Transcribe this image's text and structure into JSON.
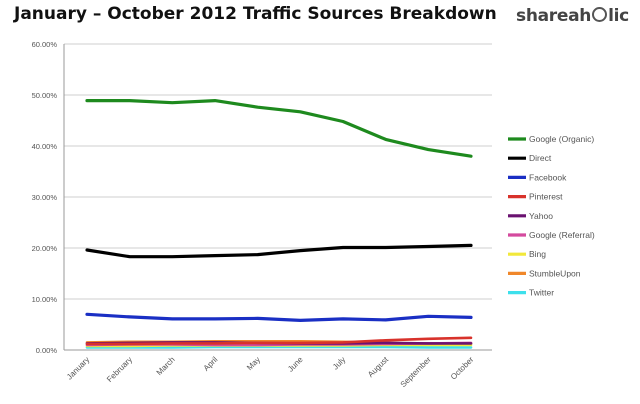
{
  "title": "January – October 2012 Traffic Sources Breakdown",
  "brand": {
    "text_left": "shareah",
    "text_right": "lic"
  },
  "chart_data": {
    "type": "line",
    "title": "January – October 2012 Traffic Sources Breakdown",
    "xlabel": "",
    "ylabel": "",
    "categories": [
      "January",
      "February",
      "March",
      "April",
      "May",
      "June",
      "July",
      "August",
      "September",
      "October"
    ],
    "ylim": [
      0,
      60
    ],
    "yticks": [
      "0.00%",
      "10.00%",
      "20.00%",
      "30.00%",
      "40.00%",
      "50.00%",
      "60.00%"
    ],
    "grid": true,
    "legend_position": "right",
    "series": [
      {
        "name": "Google (Organic)",
        "color": "#1e8a1e",
        "values": [
          48.9,
          48.9,
          48.5,
          48.9,
          47.6,
          46.7,
          44.8,
          41.3,
          39.3,
          38.0
        ]
      },
      {
        "name": "Direct",
        "color": "#000000",
        "values": [
          19.6,
          18.3,
          18.3,
          18.5,
          18.7,
          19.5,
          20.1,
          20.1,
          20.3,
          20.5
        ]
      },
      {
        "name": "Facebook",
        "color": "#1a2fc4",
        "values": [
          7.0,
          6.5,
          6.1,
          6.1,
          6.2,
          5.8,
          6.1,
          5.9,
          6.6,
          6.4
        ]
      },
      {
        "name": "Pinterest",
        "color": "#d8322b",
        "values": [
          1.2,
          1.2,
          1.3,
          1.3,
          1.4,
          1.4,
          1.5,
          1.9,
          2.2,
          2.4
        ]
      },
      {
        "name": "Yahoo",
        "color": "#6a1270",
        "values": [
          1.3,
          1.4,
          1.5,
          1.5,
          1.4,
          1.3,
          1.3,
          1.4,
          1.3,
          1.3
        ]
      },
      {
        "name": "Google (Referral)",
        "color": "#d44a9e",
        "values": [
          1.0,
          1.1,
          1.1,
          1.0,
          1.0,
          1.1,
          1.1,
          1.2,
          1.3,
          1.4
        ]
      },
      {
        "name": "Bing",
        "color": "#f2e83a",
        "values": [
          0.8,
          0.8,
          0.9,
          0.9,
          0.9,
          0.9,
          0.9,
          1.0,
          1.0,
          1.0
        ]
      },
      {
        "name": "StumbleUpon",
        "color": "#f0872a",
        "values": [
          1.5,
          1.6,
          1.6,
          1.7,
          1.7,
          1.7,
          1.6,
          1.4,
          1.3,
          1.2
        ]
      },
      {
        "name": "Twitter",
        "color": "#3de0ec",
        "values": [
          0.5,
          0.5,
          0.5,
          0.6,
          0.6,
          0.6,
          0.6,
          0.6,
          0.5,
          0.5
        ]
      }
    ]
  }
}
